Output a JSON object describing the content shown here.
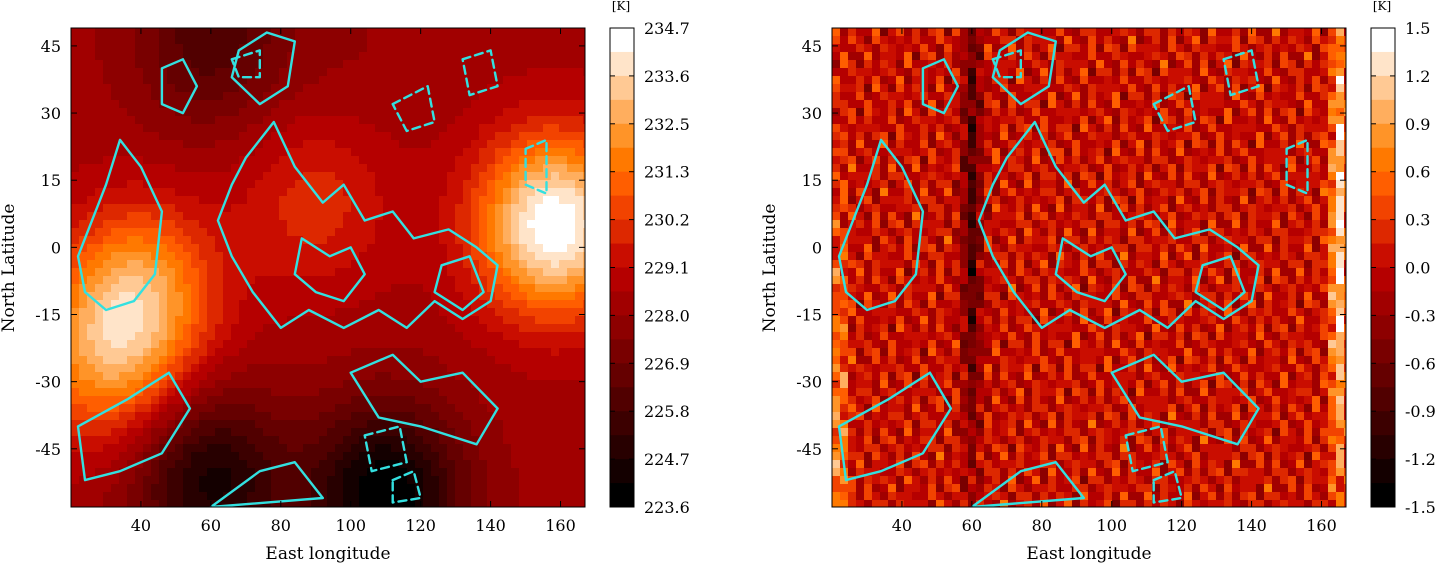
{
  "figure": {
    "contour_color": "#33e0e0",
    "colormap": "gist_heat"
  },
  "chart_data": [
    {
      "type": "heatmap",
      "title": "",
      "xlabel": "East longitude",
      "ylabel": "North Latitude",
      "xlim": [
        20,
        167
      ],
      "ylim": [
        -58,
        49
      ],
      "xticks": [
        "40",
        "60",
        "80",
        "100",
        "120",
        "140",
        "160"
      ],
      "yticks": [
        "45",
        "30",
        "15",
        "0",
        "-15",
        "-30",
        "-45"
      ],
      "colorbar": {
        "unit": "[K]",
        "range": [
          223.6,
          234.7
        ],
        "ticks": [
          "234.7",
          "233.6",
          "232.5",
          "231.3",
          "230.2",
          "229.1",
          "228.0",
          "226.9",
          "225.8",
          "224.7",
          "223.6"
        ],
        "levels": 20
      },
      "field_features": [
        {
          "lon": 158,
          "lat": 5,
          "value": 234.7
        },
        {
          "lon": 40,
          "lat": -10,
          "value": 232.0
        },
        {
          "lon": 30,
          "lat": -25,
          "value": 231.5
        },
        {
          "lon": 90,
          "lat": 10,
          "value": 230.0
        },
        {
          "lon": 100,
          "lat": 40,
          "value": 228.0
        },
        {
          "lon": 60,
          "lat": 47,
          "value": 226.0
        },
        {
          "lon": 110,
          "lat": -55,
          "value": 223.6
        },
        {
          "lon": 60,
          "lat": -52,
          "value": 224.5
        }
      ]
    },
    {
      "type": "heatmap",
      "title": "",
      "xlabel": "East longitude",
      "ylabel": "North Latitude",
      "xlim": [
        20,
        167
      ],
      "ylim": [
        -58,
        49
      ],
      "xticks": [
        "40",
        "60",
        "80",
        "100",
        "120",
        "140",
        "160"
      ],
      "yticks": [
        "45",
        "30",
        "15",
        "0",
        "-15",
        "-30",
        "-45"
      ],
      "colorbar": {
        "unit": "[K]",
        "range": [
          -1.5,
          1.5
        ],
        "ticks": [
          "1.5",
          "1.2",
          "0.9",
          "0.6",
          "0.3",
          "0.0",
          "-0.3",
          "-0.6",
          "-0.9",
          "-1.2",
          "-1.5"
        ],
        "levels": 20
      },
      "field_features": [
        {
          "lon": 165,
          "lat": 0,
          "value": 1.5
        },
        {
          "lon": 22,
          "lat": -50,
          "value": 0.9
        },
        {
          "lon": 60,
          "lat": 10,
          "value": -1.2
        }
      ]
    }
  ]
}
